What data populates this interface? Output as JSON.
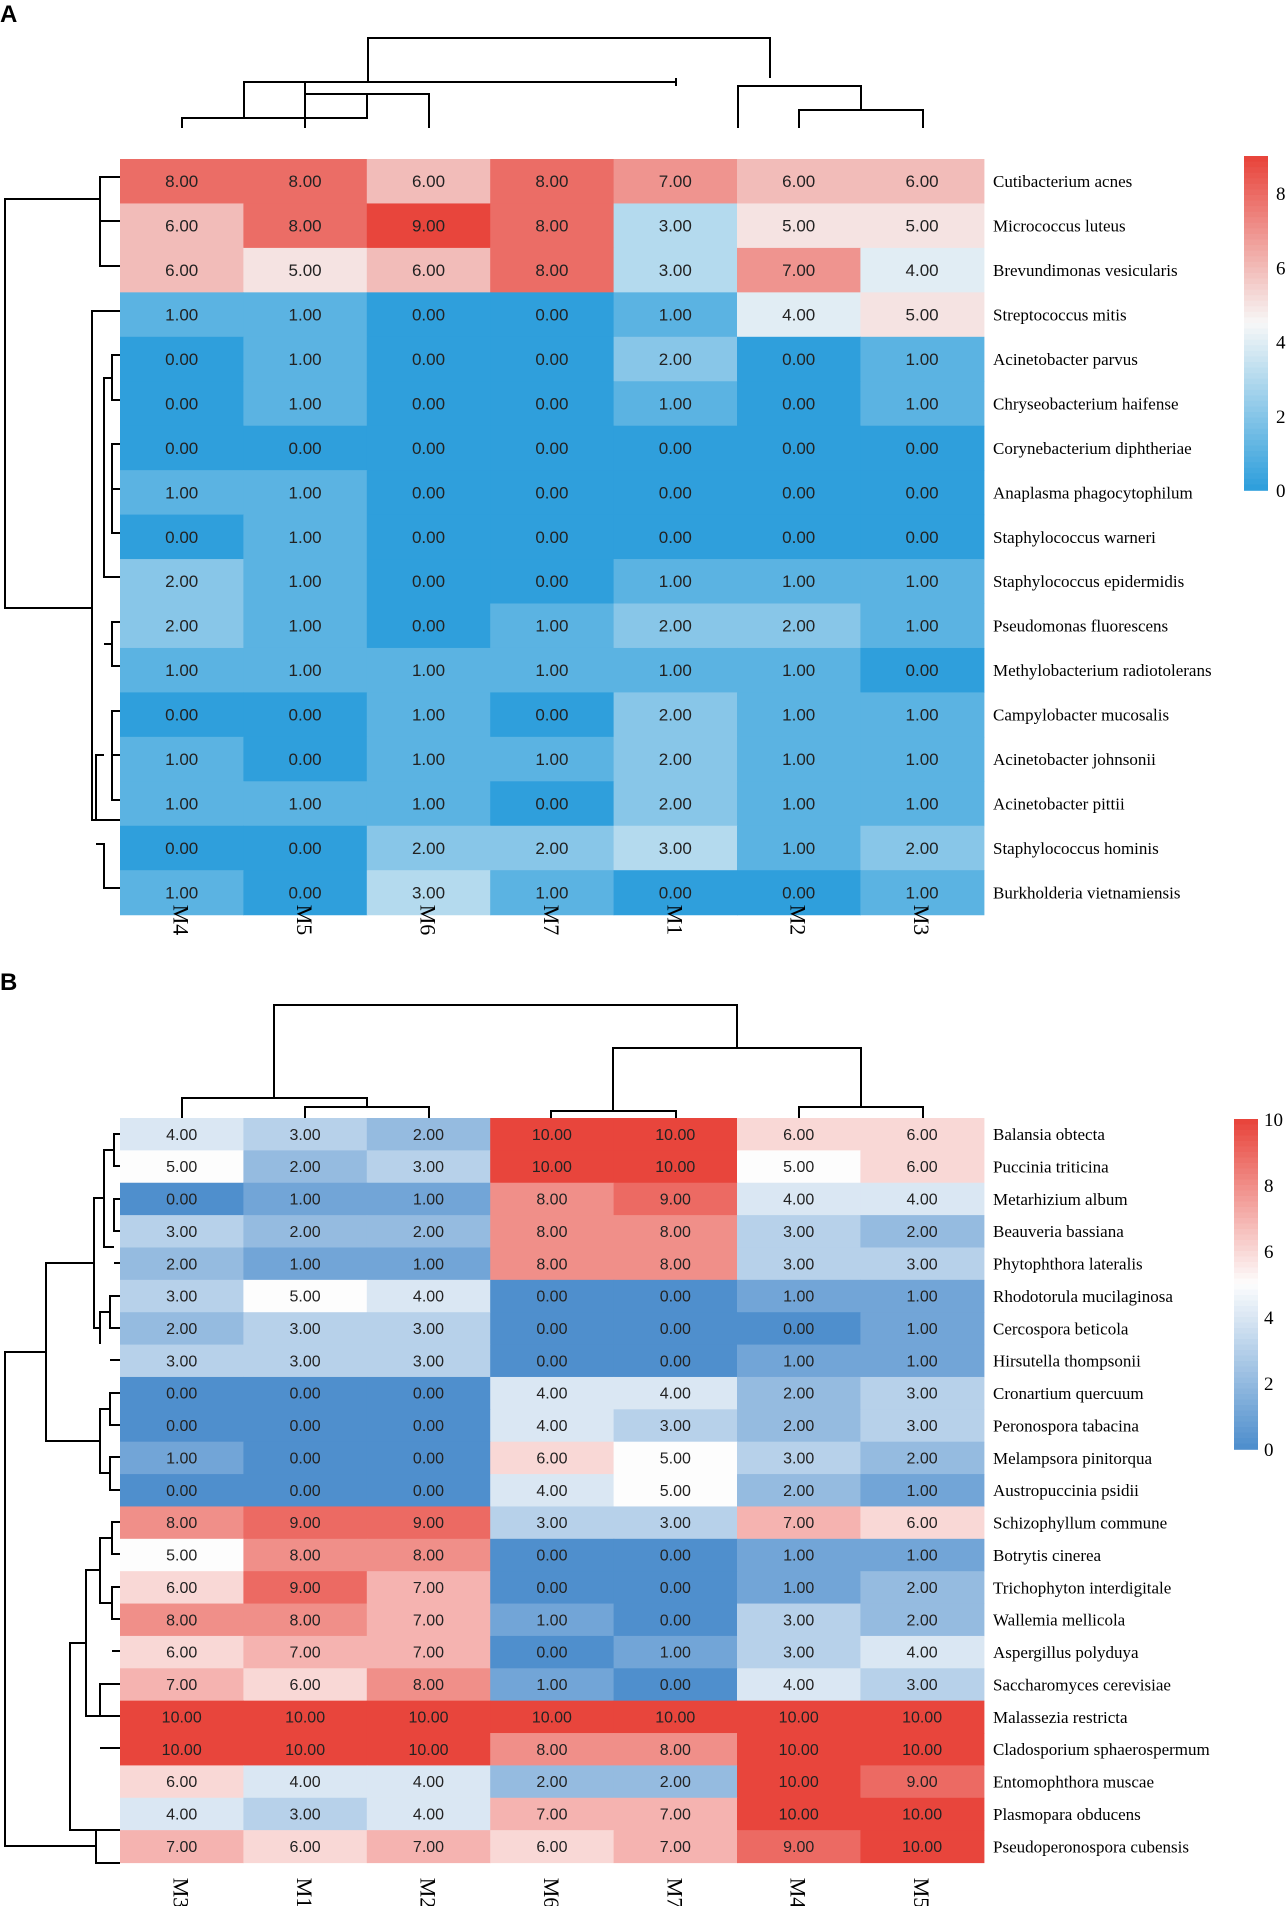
{
  "chart_data": [
    {
      "type": "heatmap",
      "panel_label": "A",
      "columns": [
        "M4",
        "M5",
        "M6",
        "M7",
        "M1",
        "M2",
        "M3"
      ],
      "rows": [
        "Cutibacterium acnes",
        "Micrococcus luteus",
        "Brevundimonas vesicularis",
        "Streptococcus mitis",
        "Acinetobacter parvus",
        "Chryseobacterium haifense",
        "Corynebacterium diphtheriae",
        "Anaplasma phagocytophilum",
        "Staphylococcus warneri",
        "Staphylococcus epidermidis",
        "Pseudomonas fluorescens",
        "Methylobacterium radiotolerans",
        "Campylobacter mucosalis",
        "Acinetobacter johnsonii",
        "Acinetobacter pittii",
        "Staphylococcus hominis",
        "Burkholderia vietnamiensis"
      ],
      "values": [
        [
          8,
          8,
          6,
          8,
          7,
          6,
          6
        ],
        [
          6,
          8,
          9,
          8,
          3,
          5,
          5
        ],
        [
          6,
          5,
          6,
          8,
          3,
          7,
          4
        ],
        [
          1,
          1,
          0,
          0,
          1,
          4,
          5
        ],
        [
          0,
          1,
          0,
          0,
          2,
          0,
          1
        ],
        [
          0,
          1,
          0,
          0,
          1,
          0,
          1
        ],
        [
          0,
          0,
          0,
          0,
          0,
          0,
          0
        ],
        [
          1,
          1,
          0,
          0,
          0,
          0,
          0
        ],
        [
          0,
          1,
          0,
          0,
          0,
          0,
          0
        ],
        [
          2,
          1,
          0,
          0,
          1,
          1,
          1
        ],
        [
          2,
          1,
          0,
          1,
          2,
          2,
          1
        ],
        [
          1,
          1,
          1,
          1,
          1,
          1,
          0
        ],
        [
          0,
          0,
          1,
          0,
          2,
          1,
          1
        ],
        [
          1,
          0,
          1,
          1,
          2,
          1,
          1
        ],
        [
          1,
          1,
          1,
          0,
          2,
          1,
          1
        ],
        [
          0,
          0,
          2,
          2,
          3,
          1,
          2
        ],
        [
          1,
          0,
          3,
          1,
          0,
          0,
          1
        ]
      ],
      "value_format": "2dp",
      "colorbar": {
        "min": 0,
        "max": 9,
        "mid": 4.5,
        "ticks": [
          0,
          2,
          4,
          6,
          8
        ]
      },
      "colors": {
        "low": "#2f9fdc",
        "mid": "#f7f7f7",
        "high": "#e8453c"
      }
    },
    {
      "type": "heatmap",
      "panel_label": "B",
      "columns": [
        "M3",
        "M1",
        "M2",
        "M6",
        "M7",
        "M4",
        "M5"
      ],
      "rows": [
        "Balansia obtecta",
        "Puccinia triticina",
        "Metarhizium album",
        "Beauveria bassiana",
        "Phytophthora lateralis",
        "Rhodotorula mucilaginosa",
        "Cercospora beticola",
        "Hirsutella thompsonii",
        "Cronartium quercuum",
        "Peronospora tabacina",
        "Melampsora pinitorqua",
        "Austropuccinia psidii",
        "Schizophyllum commune",
        "Botrytis cinerea",
        "Trichophyton interdigitale",
        "Wallemia mellicola",
        "Aspergillus polyduya",
        "Saccharomyces cerevisiae",
        "Malassezia restricta",
        "Cladosporium sphaerospermum",
        "Entomophthora muscae",
        "Plasmopara obducens",
        "Pseudoperonospora cubensis"
      ],
      "values": [
        [
          4,
          3,
          2,
          10,
          10,
          6,
          6
        ],
        [
          5,
          2,
          3,
          10,
          10,
          5,
          6
        ],
        [
          0,
          1,
          1,
          8,
          9,
          4,
          4
        ],
        [
          3,
          2,
          2,
          8,
          8,
          3,
          2
        ],
        [
          2,
          1,
          1,
          8,
          8,
          3,
          3
        ],
        [
          3,
          5,
          4,
          0,
          0,
          1,
          1
        ],
        [
          2,
          3,
          3,
          0,
          0,
          0,
          1
        ],
        [
          3,
          3,
          3,
          0,
          0,
          1,
          1
        ],
        [
          0,
          0,
          0,
          4,
          4,
          2,
          3
        ],
        [
          0,
          0,
          0,
          4,
          3,
          2,
          3
        ],
        [
          1,
          0,
          0,
          6,
          5,
          3,
          2
        ],
        [
          0,
          0,
          0,
          4,
          5,
          2,
          1
        ],
        [
          8,
          9,
          9,
          3,
          3,
          7,
          6
        ],
        [
          5,
          8,
          8,
          0,
          0,
          1,
          1
        ],
        [
          6,
          9,
          7,
          0,
          0,
          1,
          2
        ],
        [
          8,
          8,
          7,
          1,
          0,
          3,
          2
        ],
        [
          6,
          7,
          7,
          0,
          1,
          3,
          4
        ],
        [
          7,
          6,
          8,
          1,
          0,
          4,
          3
        ],
        [
          10,
          10,
          10,
          10,
          10,
          10,
          10
        ],
        [
          10,
          10,
          10,
          8,
          8,
          10,
          10
        ],
        [
          6,
          4,
          4,
          2,
          2,
          10,
          9
        ],
        [
          4,
          3,
          4,
          7,
          7,
          10,
          10
        ],
        [
          7,
          6,
          7,
          6,
          7,
          9,
          10
        ]
      ],
      "value_format": "2dp",
      "colorbar": {
        "min": 0,
        "max": 10,
        "mid": 5,
        "ticks": [
          0,
          2,
          4,
          6,
          8,
          10
        ]
      },
      "colors": {
        "low": "#4f8fcd",
        "mid": "#fdfdfd",
        "high": "#e8453c"
      }
    }
  ]
}
